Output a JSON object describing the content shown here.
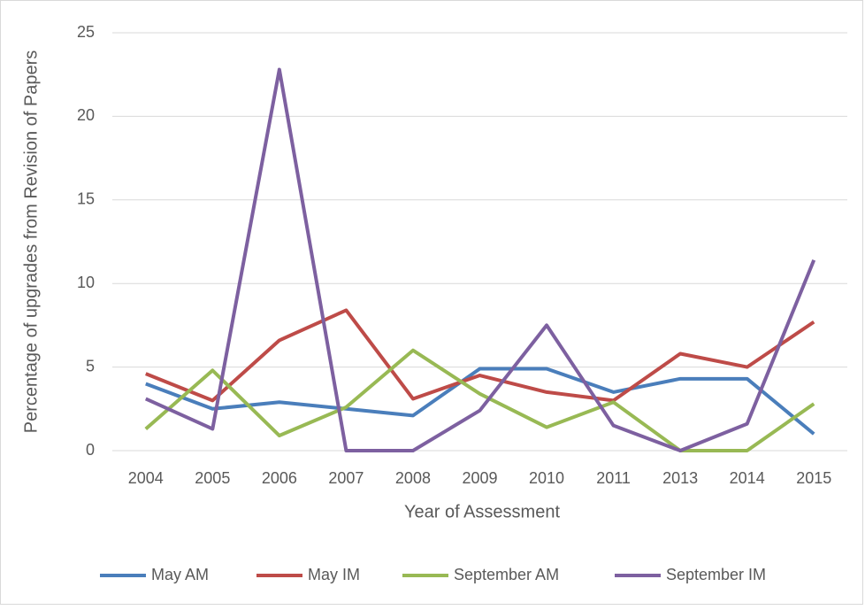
{
  "chart_data": {
    "type": "line",
    "x_label": "Year of Assessment",
    "y_label": "Percentage of upgrades from Revision of Papers",
    "categories": [
      "2004",
      "2005",
      "2006",
      "2007",
      "2008",
      "2009",
      "2010",
      "2011",
      "2013",
      "2014",
      "2015"
    ],
    "series": [
      {
        "name": "May AM",
        "color": "#4a7ebb",
        "values": [
          4.0,
          2.5,
          2.9,
          2.5,
          2.1,
          4.9,
          4.9,
          3.5,
          4.3,
          4.3,
          1.0
        ]
      },
      {
        "name": "May IM",
        "color": "#be4b48",
        "values": [
          4.6,
          3.0,
          6.6,
          8.4,
          3.1,
          4.5,
          3.5,
          3.0,
          5.8,
          5.0,
          7.7
        ]
      },
      {
        "name": "September AM",
        "color": "#98b954",
        "values": [
          1.3,
          4.8,
          0.9,
          2.6,
          6.0,
          3.4,
          1.4,
          2.9,
          0,
          0,
          2.8
        ]
      },
      {
        "name": "September IM",
        "color": "#7d60a0",
        "values": [
          3.1,
          1.3,
          22.8,
          0,
          0,
          2.4,
          7.5,
          1.5,
          0,
          1.6,
          11.4
        ]
      }
    ],
    "ylim": [
      0,
      25
    ],
    "yticks": [
      0,
      5,
      10,
      15,
      20,
      25
    ],
    "grid": true,
    "legend": "bottom"
  }
}
